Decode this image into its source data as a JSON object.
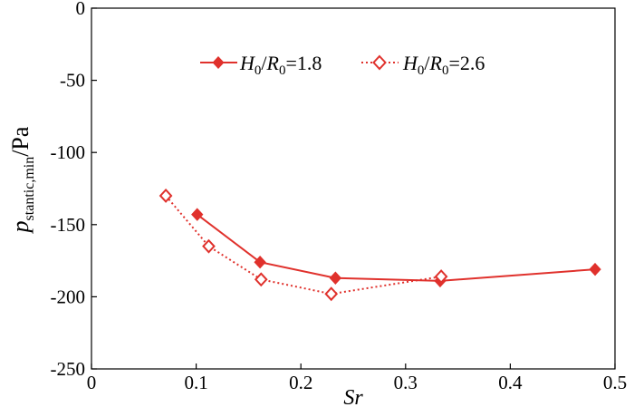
{
  "chart_data": {
    "type": "line",
    "xlabel": "Sr",
    "ylabel_main": "p",
    "ylabel_sub": "stantic,min",
    "ylabel_unit": "/Pa",
    "xlim": [
      0,
      0.5
    ],
    "ylim": [
      -250,
      0
    ],
    "xticks": [
      0,
      0.1,
      0.2,
      0.3,
      0.4,
      0.5
    ],
    "xtick_labels": [
      "0",
      "0.1",
      "0.2",
      "0.3",
      "0.4",
      "0.5"
    ],
    "yticks": [
      0,
      -50,
      -100,
      -150,
      -200,
      -250
    ],
    "ytick_labels": [
      "0",
      "-50",
      "-100",
      "-150",
      "-200",
      "-250"
    ],
    "grid": false,
    "legend_position": "top-right",
    "color": "#e0312c",
    "series": [
      {
        "legend": {
          "var1": "H",
          "sub1": "0",
          "slash": "/",
          "var2": "R",
          "sub2": "0",
          "value": "=1.8"
        },
        "style": "solid",
        "marker": "filled-diamond",
        "x": [
          0.101,
          0.161,
          0.233,
          0.333,
          0.481
        ],
        "y": [
          -143,
          -176,
          -187,
          -189,
          -181
        ]
      },
      {
        "legend": {
          "var1": "H",
          "sub1": "0",
          "slash": "/",
          "var2": "R",
          "sub2": "0",
          "value": "=2.6"
        },
        "style": "dotted",
        "marker": "open-diamond",
        "x": [
          0.071,
          0.112,
          0.162,
          0.229,
          0.334
        ],
        "y": [
          -130,
          -165,
          -188,
          -198,
          -186
        ]
      }
    ]
  }
}
